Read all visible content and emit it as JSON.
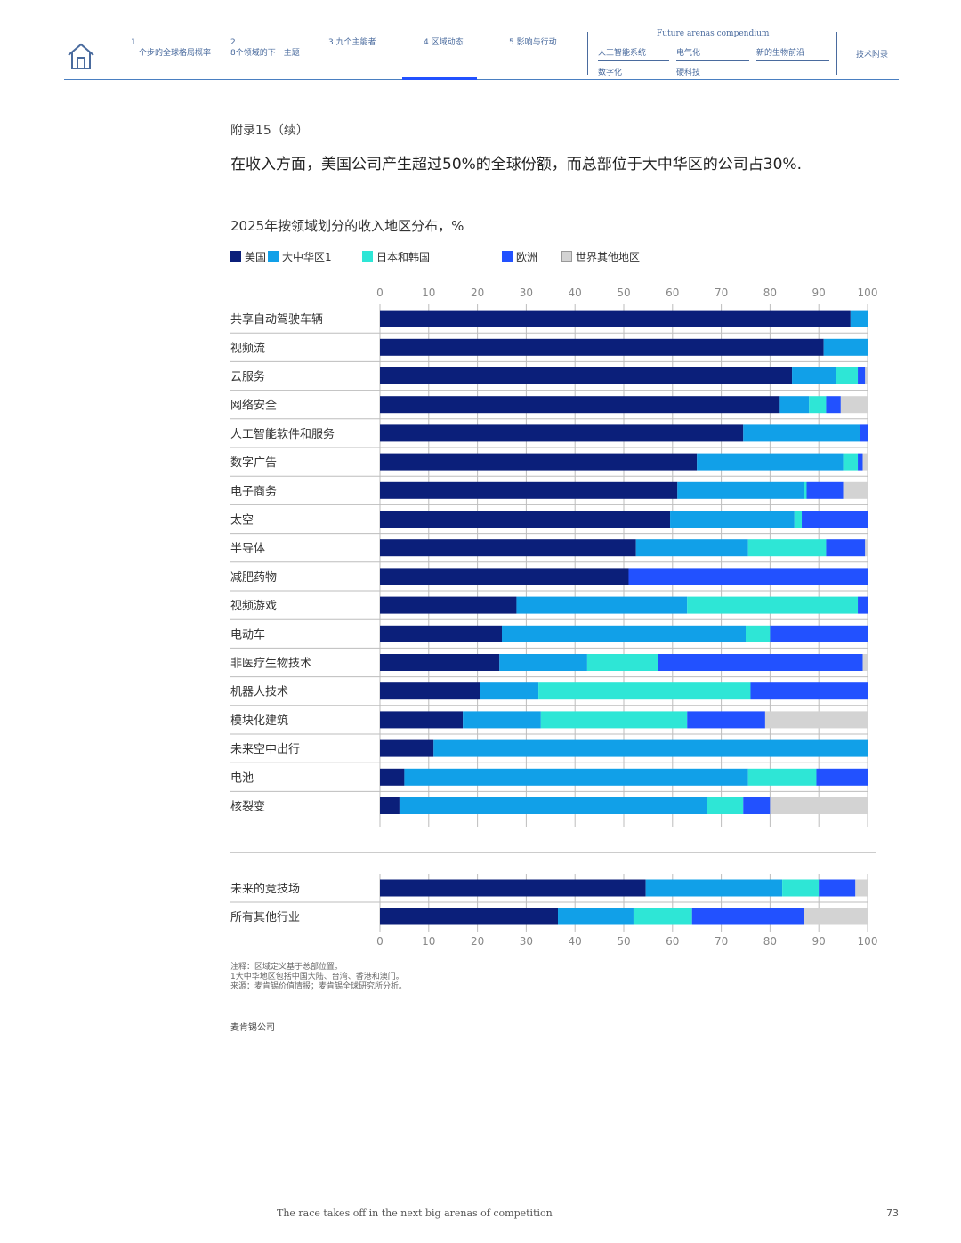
{
  "nav": {
    "items": [
      {
        "num": "1",
        "label": "一个步的全球格局概率"
      },
      {
        "num": "2",
        "label": "8个领域的下一主题"
      },
      {
        "num": "",
        "label": "3 九个主能者"
      },
      {
        "num": "",
        "label": "4 区域动态"
      },
      {
        "num": "",
        "label": "5 影响与行动"
      }
    ],
    "compendium_title": "Future arenas compendium",
    "compendium_items": [
      "人工智能系统",
      "电气化",
      "新的生物前沿",
      "数字化",
      "硬科技"
    ],
    "tech_appendix": "技术附录"
  },
  "appendix_label": "附录15（续）",
  "headline": "在收入方面，美国公司产生超过50%的全球份额，而总部位于大中华区的公司占30%.",
  "colors": {
    "us": "#0b1f7a",
    "china": "#11a0e8",
    "japan_korea": "#2ee6d6",
    "europe": "#2251ff",
    "rest": "#d3d3d3",
    "nav": "#4a6b9e",
    "active_tab": "#2251ff"
  },
  "chart_data": {
    "type": "bar",
    "orientation": "horizontal",
    "stacked": true,
    "title": "2025年按领域划分的收入地区分布，%",
    "xlim": [
      0,
      100
    ],
    "ticks": [
      0,
      10,
      20,
      30,
      40,
      50,
      60,
      70,
      80,
      90,
      100
    ],
    "legend": [
      {
        "key": "us",
        "label": "美国"
      },
      {
        "key": "china",
        "label": "大中华区1"
      },
      {
        "key": "japan_korea",
        "label": "日本和韩国"
      },
      {
        "key": "europe",
        "label": "欧洲"
      },
      {
        "key": "rest",
        "label": "世界其他地区"
      }
    ],
    "categories": [
      "共享自动驾驶车辆",
      "视频流",
      "云服务",
      "网络安全",
      "人工智能软件和服务",
      "数字广告",
      "电子商务",
      "太空",
      "半导体",
      "减肥药物",
      "视频游戏",
      "电动车",
      "非医疗生物技术",
      "机器人技术",
      "模块化建筑",
      "未来空中出行",
      "电池",
      "核裂变"
    ],
    "series": [
      {
        "key": "us",
        "name": "美国",
        "values": [
          96.5,
          91,
          84.5,
          82,
          74.5,
          65,
          61,
          59.5,
          52.5,
          51,
          28,
          25,
          24.5,
          20.5,
          17,
          11,
          5,
          4
        ]
      },
      {
        "key": "china",
        "name": "大中华区1",
        "values": [
          3.5,
          9,
          9,
          6,
          24,
          30,
          26,
          25.5,
          23,
          0,
          35,
          50,
          18,
          12,
          16,
          89,
          70.5,
          63
        ]
      },
      {
        "key": "japan_korea",
        "name": "日本和韩国",
        "values": [
          0,
          0,
          4.5,
          3.5,
          0,
          3,
          0.5,
          1.5,
          16,
          0,
          35,
          5,
          14.5,
          43.5,
          30,
          0,
          14,
          7.5
        ]
      },
      {
        "key": "europe",
        "name": "欧洲",
        "values": [
          0,
          0,
          1.5,
          3,
          1.5,
          1,
          7.5,
          13.5,
          8,
          49,
          2,
          20,
          42,
          24,
          16,
          0,
          10.5,
          5.5
        ]
      },
      {
        "key": "rest",
        "name": "世界其他地区",
        "values": [
          0,
          0,
          0.5,
          5.5,
          0,
          1,
          5,
          0,
          0.5,
          0,
          0,
          0,
          1,
          0,
          21,
          0,
          0,
          20
        ]
      }
    ],
    "summary": {
      "categories": [
        "未来的竞技场",
        "所有其他行业"
      ],
      "series": [
        {
          "key": "us",
          "name": "美国",
          "values": [
            54.5,
            36.5
          ]
        },
        {
          "key": "china",
          "name": "大中华区1",
          "values": [
            28,
            15.5
          ]
        },
        {
          "key": "japan_korea",
          "name": "日本和韩国",
          "values": [
            7.5,
            12
          ]
        },
        {
          "key": "europe",
          "name": "欧洲",
          "values": [
            7.5,
            23
          ]
        },
        {
          "key": "rest",
          "name": "世界其他地区",
          "values": [
            2.5,
            13
          ]
        }
      ]
    }
  },
  "notes": [
    "注释：区域定义基于总部位置。",
    "1大中华地区包括中国大陆、台湾、香港和澳门。",
    "来源：麦肯锡价值情报；麦肯锡全球研究所分析。"
  ],
  "source_brand": "麦肯锡公司",
  "footer": "The race takes off in the next big arenas of competition",
  "page_number": "73"
}
